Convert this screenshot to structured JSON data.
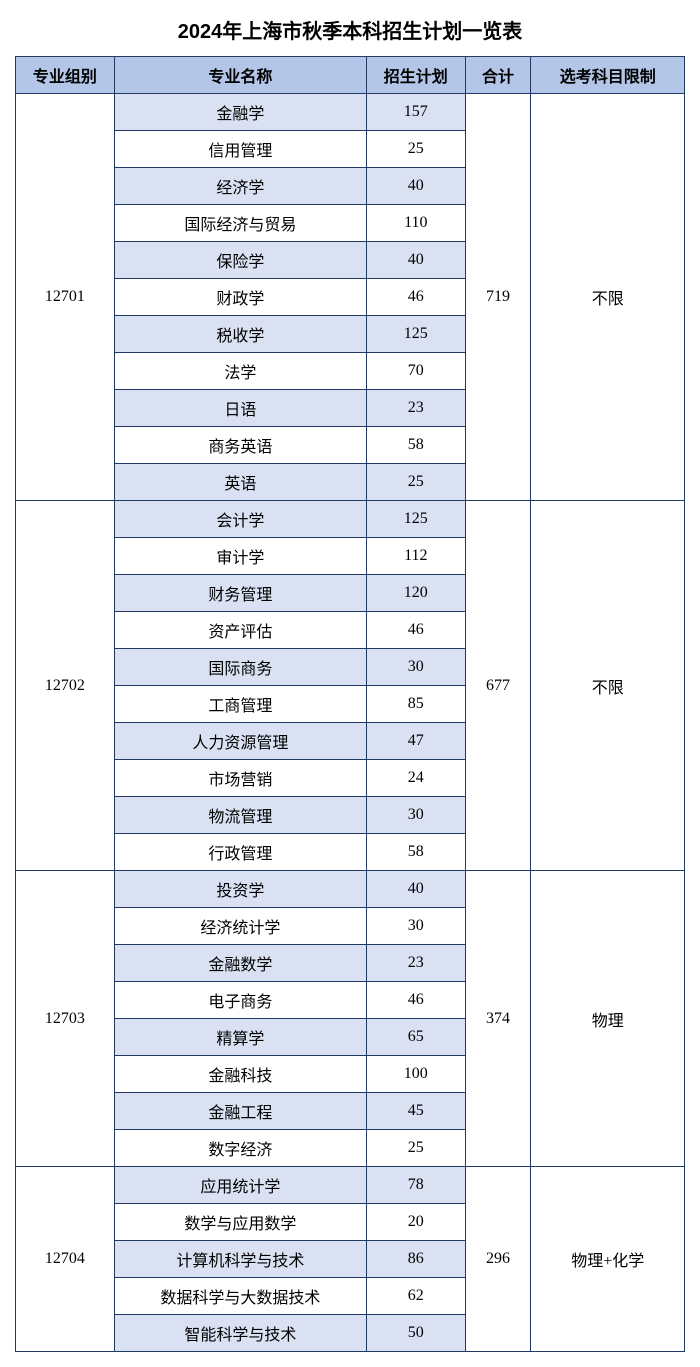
{
  "title": "2024年上海市秋季本科招生计划一览表",
  "headers": {
    "group": "专业组别",
    "major": "专业名称",
    "plan": "招生计划",
    "total": "合计",
    "limit": "选考科目限制"
  },
  "colors": {
    "header_bg": "#b4c6e7",
    "shaded_bg": "#d9e1f2",
    "border": "#1f3864",
    "bg": "#ffffff"
  },
  "groups": [
    {
      "code": "12701",
      "total": "719",
      "limit": "不限",
      "rows": [
        {
          "major": "金融学",
          "plan": "157"
        },
        {
          "major": "信用管理",
          "plan": "25"
        },
        {
          "major": "经济学",
          "plan": "40"
        },
        {
          "major": "国际经济与贸易",
          "plan": "110"
        },
        {
          "major": "保险学",
          "plan": "40"
        },
        {
          "major": "财政学",
          "plan": "46"
        },
        {
          "major": "税收学",
          "plan": "125"
        },
        {
          "major": "法学",
          "plan": "70"
        },
        {
          "major": "日语",
          "plan": "23"
        },
        {
          "major": "商务英语",
          "plan": "58"
        },
        {
          "major": "英语",
          "plan": "25"
        }
      ]
    },
    {
      "code": "12702",
      "total": "677",
      "limit": "不限",
      "rows": [
        {
          "major": "会计学",
          "plan": "125"
        },
        {
          "major": "审计学",
          "plan": "112"
        },
        {
          "major": "财务管理",
          "plan": "120"
        },
        {
          "major": "资产评估",
          "plan": "46"
        },
        {
          "major": "国际商务",
          "plan": "30"
        },
        {
          "major": "工商管理",
          "plan": "85"
        },
        {
          "major": "人力资源管理",
          "plan": "47"
        },
        {
          "major": "市场营销",
          "plan": "24"
        },
        {
          "major": "物流管理",
          "plan": "30"
        },
        {
          "major": "行政管理",
          "plan": "58"
        }
      ]
    },
    {
      "code": "12703",
      "total": "374",
      "limit": "物理",
      "rows": [
        {
          "major": "投资学",
          "plan": "40"
        },
        {
          "major": "经济统计学",
          "plan": "30"
        },
        {
          "major": "金融数学",
          "plan": "23"
        },
        {
          "major": "电子商务",
          "plan": "46"
        },
        {
          "major": "精算学",
          "plan": "65"
        },
        {
          "major": "金融科技",
          "plan": "100"
        },
        {
          "major": "金融工程",
          "plan": "45"
        },
        {
          "major": "数字经济",
          "plan": "25"
        }
      ]
    },
    {
      "code": "12704",
      "total": "296",
      "limit": "物理+化学",
      "rows": [
        {
          "major": "应用统计学",
          "plan": "78"
        },
        {
          "major": "数学与应用数学",
          "plan": "20"
        },
        {
          "major": "计算机科学与技术",
          "plan": "86"
        },
        {
          "major": "数据科学与大数据技术",
          "plan": "62"
        },
        {
          "major": "智能科学与技术",
          "plan": "50"
        }
      ]
    }
  ]
}
